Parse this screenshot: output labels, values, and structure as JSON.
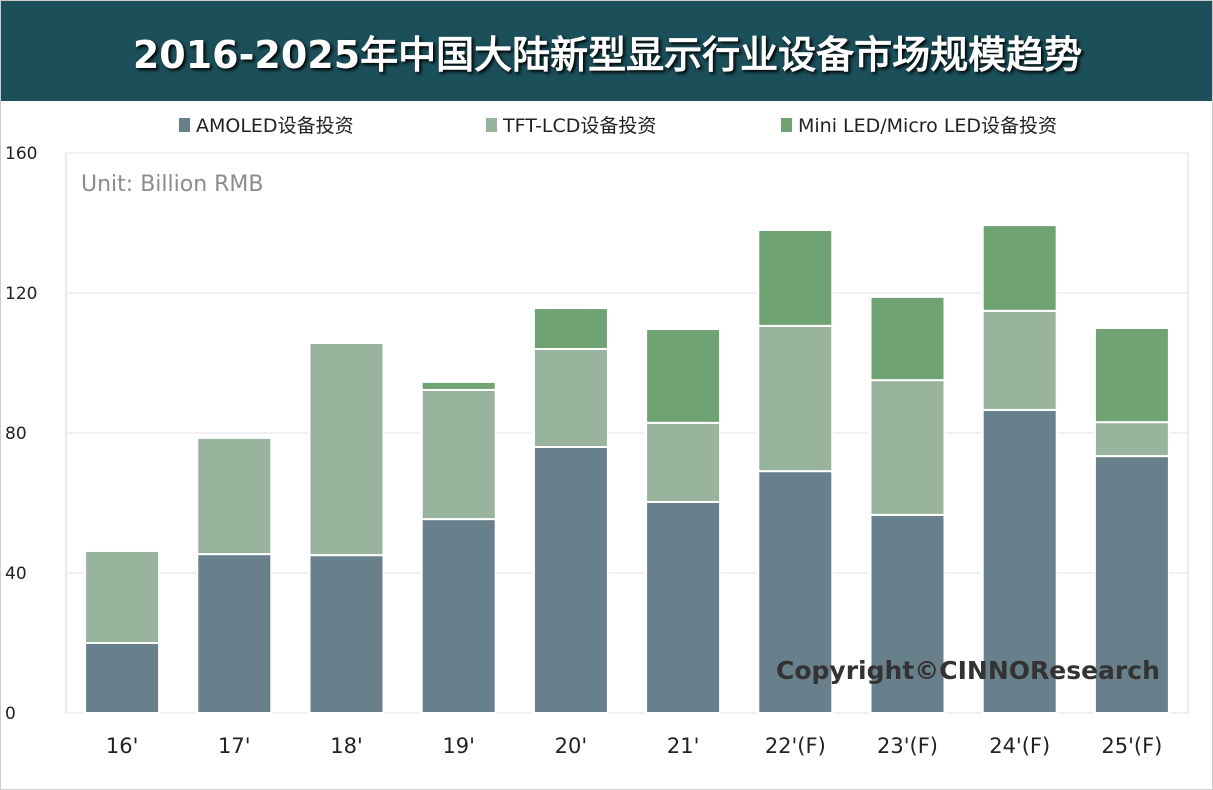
{
  "chart_data": {
    "type": "bar",
    "stacked": true,
    "title": "2016-2025年中国大陆新型显示行业设备市场规模趋势",
    "unit_note": "Unit: Billion RMB",
    "copyright": "Copyright©CINNOResearch",
    "categories": [
      "16'",
      "17'",
      "18'",
      "19'",
      "20'",
      "21'",
      "22'(F)",
      "23'(F)",
      "24'(F)",
      "25'(F)"
    ],
    "series": [
      {
        "name": "AMOLED设备投资",
        "color": "#687f8c",
        "values": [
          20,
          45.4,
          45.1,
          55.4,
          76,
          60.3,
          69.1,
          56.6,
          86.6,
          73.4
        ]
      },
      {
        "name": "TFT-LCD设备投资",
        "color": "#98b49c",
        "values": [
          26.3,
          33.2,
          60.6,
          36.9,
          28,
          22.6,
          41.5,
          38.5,
          28.3,
          9.7
        ]
      },
      {
        "name": "Mini LED/Micro LED设备投资",
        "color": "#6fa374",
        "values": [
          0,
          0,
          0,
          2.3,
          11.7,
          26.8,
          27.4,
          23.8,
          24.5,
          26.9
        ]
      }
    ],
    "ylim": [
      0,
      160
    ],
    "yticks": [
      0,
      40,
      80,
      120,
      160
    ],
    "grid": true,
    "legend": "top"
  }
}
